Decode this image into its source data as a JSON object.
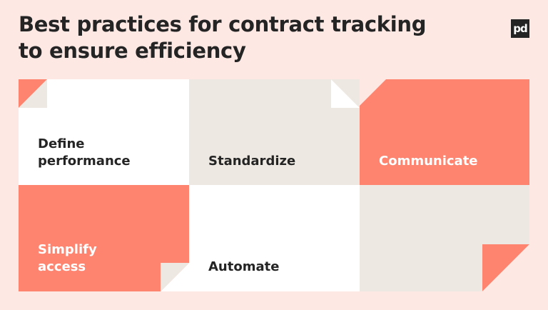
{
  "title": {
    "line1": "Best practices for contract tracking",
    "line2": "to ensure efficiency"
  },
  "logo": {
    "text": "pd",
    "icon": "pandadoc-logo-icon"
  },
  "tiles": [
    {
      "lines": [
        "Define",
        "performance"
      ],
      "color": "#ffffff"
    },
    {
      "lines": [
        "Standardize"
      ],
      "color": "#ede8e1"
    },
    {
      "lines": [
        "Communicate"
      ],
      "color": "#fe8470"
    },
    {
      "lines": [
        "Simplify",
        "access"
      ],
      "color": "#fe8470"
    },
    {
      "lines": [
        "Automate"
      ],
      "color": "#ffffff"
    },
    {
      "lines": [],
      "color": "#ede8e1"
    }
  ],
  "colors": {
    "background": "#fde8e4",
    "coral": "#fe8470",
    "beige": "#ede8e1",
    "white": "#ffffff",
    "dark": "#242424"
  }
}
